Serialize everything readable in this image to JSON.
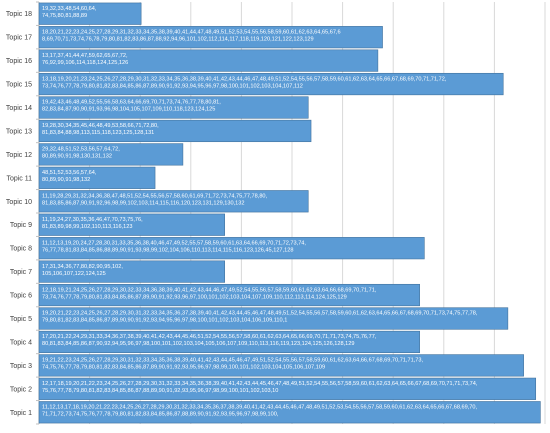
{
  "chart_data": {
    "type": "bar",
    "orientation": "horizontal",
    "grid": true,
    "categories": [
      "Topic 18",
      "Topic 17",
      "Topic 16",
      "Topic 15",
      "Topic 14",
      "Topic 13",
      "Topic 12",
      "Topic 11",
      "Topic 10",
      "Topic 9",
      "Topic 8",
      "Topic 7",
      "Topic 6",
      "Topic 5",
      "Topic 4",
      "Topic 3",
      "Topic 2",
      "Topic 1"
    ],
    "values": [
      110,
      370,
      365,
      500,
      290,
      293,
      155,
      125,
      290,
      200,
      415,
      200,
      410,
      505,
      410,
      522,
      535,
      540
    ],
    "labels": [
      [
        "19,32,33,48,54,60,64,",
        "74,75,80,81,88,89"
      ],
      [
        "18,20,21,22,23,24,25,27,28,29,31,32,33,34,35,38,39,40,41,44,47,48,49,51,52,53,54,55,56,58,59,60,61,62,63,64,65,67,6",
        "8,69,70,71,73,74,76,78,79,80,81,82,83,86,87,88,92,94,96,101,102,112,114,117,118,119,120,121,122,123,129"
      ],
      [
        "13,17,37,41,44,47,59,62,65,67,72,",
        "76,92,99,106,114,118,124,125,126"
      ],
      [
        "13,18,19,20,21,23,24,25,26,27,28,29,30,31,32,33,34,35,36,38,39,40,41,42,43,44,46,47,48,49,51,52,54,55,56,57,58,59,60,61,62,63,64,65,66,67,68,69,70,71,71,72,",
        "73,74,76,77,78,79,80,81,82,83,84,85,86,87,89,90,91,92,93,94,95,96,97,98,100,101,102,103,104,107,112"
      ],
      [
        "19,42,43,46,48,49,52,55,56,58,63,64,66,69,70,71,73,74,76,77,78,80,81,",
        "82,83,84,87,90,90,91,93,96,98,104,105,107,109,110,118,123,124,125"
      ],
      [
        "19,28,30,34,35,45,46,48,49,53,58,66,71,72,80,",
        "81,83,84,88,98,113,115,118,123,125,128,131"
      ],
      [
        "29,32,48,51,52,53,56,57,64,72,",
        "80,89,90,91,98,130,131,132"
      ],
      [
        "48,51,52,53,56,57,64,",
        "80,89,90,91,98,132"
      ],
      [
        "11,19,28,29,31,32,34,36,38,47,48,51,52,54,55,56,57,58,60,61,69,71,72,73,74,75,77,78,80,",
        "81,83,85,86,87,90,91,92,96,98,99,102,103,114,115,116,120,123,131,129,130,132"
      ],
      [
        "11,19,24,27,30,35,36,46,47,70,73,75,76,",
        "81,83,89,98,99,102,110,113,116,123"
      ],
      [
        "11,12,13,19,20,24,27,28,30,31,33,35,36,38,40,46,47,49,52,55,57,58,59,60,61,63,64,66,69,70,71,72,73,74,",
        "76,77,78,81,83,84,85,86,88,89,90,91,93,98,99,102,104,106,110,113,114,115,116,123,126,45,127,128"
      ],
      [
        "17,31,34,36,77,80,82,90,95,102,",
        "105,106,107,122,124,125"
      ],
      [
        "12,18,19,21,24,25,26,27,28,29,30,32,33,34,36,38,39,40,41,42,43,44,46,47,49,52,54,55,56,57,58,59,60,61,62,63,64,66,68,69,70,71,71,",
        "73,74,76,77,78,79,80,81,83,84,85,86,87,89,90,91,92,93,96,97,100,101,102,103,104,107,109,110,112,113,114,124,125,129"
      ],
      [
        "19,20,21,22,23,24,25,26,27,28,29,30,31,32,33,34,35,36,37,38,39,40,41,42,43,44,45,46,47,48,49,51,52,54,55,56,57,58,59,60,61,62,63,64,65,66,67,68,69,70,71,73,74,75,77,78,",
        "79,80,81,82,83,84,85,86,87,89,90,90,91,92,93,94,95,96,97,98,100,101,102,103,104,106,109,110,1"
      ],
      [
        "17,20,21,22,24,29,31,33,34,36,37,38,39,40,41,42,43,44,45,46,51,52,54,55,56,57,58,60,61,62,63,64,65,66,69,70,71,71,73,74,75,76,77,",
        "80,81,83,84,85,86,87,90,92,94,95,96,97,98,100,101,102,103,104,105,106,107,109,110,113,116,119,123,124,125,126,128,129"
      ],
      [
        "19,21,22,23,24,25,26,27,28,29,30,31,32,33,34,35,36,38,39,40,41,42,43,44,45,46,47,49,51,52,54,55,56,57,58,59,60,61,62,63,64,66,67,68,69,70,71,71,73,",
        "74,75,76,77,78,79,80,81,82,83,84,85,86,87,89,90,91,92,93,95,96,97,98,99,100,101,102,103,104,105,106,107,109"
      ],
      [
        "12,17,18,19,20,21,22,23,24,25,26,27,28,29,30,31,32,33,34,35,36,38,39,40,41,42,43,44,45,46,47,48,49,51,52,54,55,56,57,58,59,60,61,62,63,64,65,66,67,68,69,70,71,71,73,74,",
        "75,76,77,78,79,80,81,82,83,84,85,86,87,88,89,90,91,92,93,95,96,97,98,99,100,101,102,103,10"
      ],
      [
        "11,12,13,17,18,19,20,21,22,23,24,25,26,27,28,29,30,31,32,33,34,35,36,37,38,39,40,41,42,43,44,45,46,47,48,49,51,52,53,54,55,56,57,58,59,60,61,62,63,64,65,66,67,68,69,70,",
        "71,71,72,73,74,75,76,77,78,79,80,81,82,83,84,85,86,87,88,89,90,91,92,93,95,96,97,98,99,100,"
      ]
    ],
    "xlim": [
      0,
      545
    ],
    "colors": {
      "bar": "#5b9bd5",
      "bar_border": "#41719c",
      "grid": "#d9d9d9",
      "axis": "#bfbfbf",
      "category_text": "#404040",
      "label_text": "#ffffff"
    }
  }
}
